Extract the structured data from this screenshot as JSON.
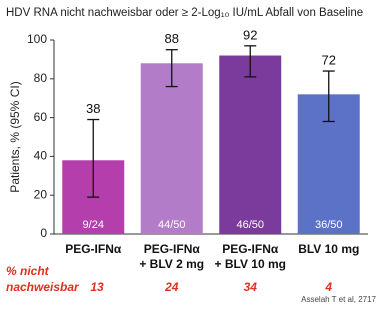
{
  "chart_data": {
    "type": "bar",
    "title": "HDV RNA nicht nachweisbar oder ≥ 2-Log₁₀ IU/mL Abfall von Baseline",
    "y_label": "Patients, % (95% CI)",
    "categories": [
      [
        "PEG-IFNα"
      ],
      [
        "PEG-IFNα",
        "+ BLV 2 mg"
      ],
      [
        "PEG-IFNα",
        "+ BLV 10 mg"
      ],
      [
        "BLV 10 mg"
      ]
    ],
    "values": [
      38,
      88,
      92,
      72
    ],
    "ci_low": [
      19,
      76,
      81,
      58
    ],
    "ci_high": [
      59,
      95,
      97,
      84
    ],
    "bar_labels": [
      "9/24",
      "44/50",
      "46/50",
      "36/50"
    ],
    "colors": [
      "#b43fac",
      "#b27cc8",
      "#7b3b9c",
      "#5b72c6"
    ],
    "ylim": [
      0,
      100
    ],
    "yticks": [
      0,
      20,
      40,
      60,
      80,
      100
    ],
    "grid": false,
    "row_label": [
      "% nicht",
      "nachweisbar"
    ],
    "row_values": [
      "13",
      "24",
      "34",
      "4"
    ],
    "source": "Asselah T et al, 2717"
  }
}
